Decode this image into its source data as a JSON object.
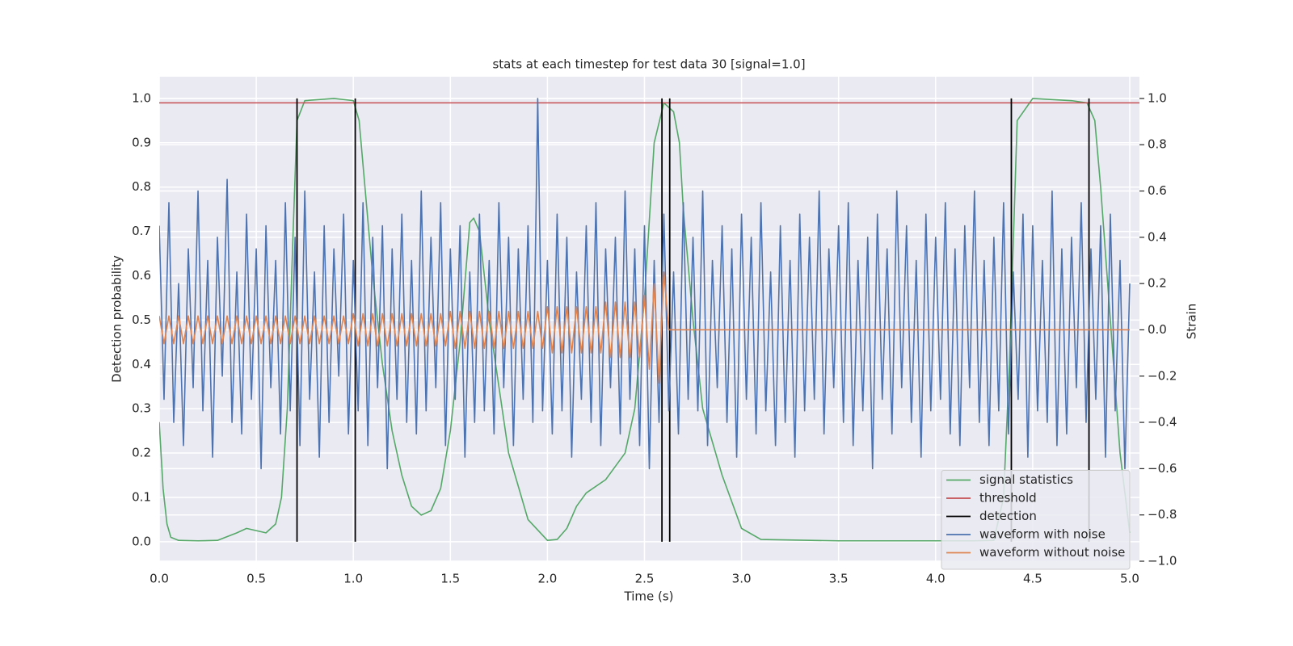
{
  "chart_data": {
    "type": "line",
    "title": "stats at each timestep for test data 30 [signal=1.0]",
    "xlabel": "Time (s)",
    "ylabel": "Detection probability",
    "y2label": "Strain",
    "xlim": [
      0,
      5.05
    ],
    "ylim": [
      -0.044,
      1.049
    ],
    "y2lim": [
      -1.0,
      1.094
    ],
    "xticks": [
      {
        "value": 0,
        "label": "0.0"
      },
      0.5,
      {
        "value": 1,
        "label": "1.0"
      },
      1.5,
      {
        "value": 2,
        "label": "2.0"
      },
      2.5,
      {
        "value": 3,
        "label": "3.0"
      },
      3.5,
      {
        "value": 4,
        "label": "4.0"
      },
      4.5,
      {
        "value": 5,
        "label": "5.0"
      }
    ],
    "yticks": [
      {
        "value": 0,
        "label": "0.0"
      },
      0.1,
      0.2,
      0.3,
      0.4,
      0.5,
      0.6,
      0.7,
      0.8,
      0.9,
      {
        "value": 1,
        "label": "1.0"
      }
    ],
    "y2ticks": [
      {
        "value": -1,
        "label": "−1.0"
      },
      {
        "value": -0.8,
        "label": "−0.8"
      },
      {
        "value": -0.6,
        "label": "−0.6"
      },
      {
        "value": -0.4,
        "label": "−0.4"
      },
      {
        "value": -0.2,
        "label": "−0.2"
      },
      {
        "value": 0,
        "label": "0.0"
      },
      0.2,
      0.4,
      0.6,
      0.8,
      {
        "value": 1,
        "label": "1.0"
      }
    ],
    "grid": true,
    "legend": "lower right",
    "series": [
      {
        "name": "signal statistics",
        "color": "#55a868",
        "x": [
          0,
          0.02,
          0.04,
          0.06,
          0.1,
          0.2,
          0.3,
          0.4,
          0.45,
          0.5,
          0.55,
          0.6,
          0.63,
          0.66,
          0.69,
          0.71,
          0.75,
          0.9,
          1.0,
          1.03,
          1.06,
          1.1,
          1.15,
          1.2,
          1.25,
          1.3,
          1.35,
          1.4,
          1.45,
          1.5,
          1.55,
          1.6,
          1.62,
          1.65,
          1.7,
          1.75,
          1.8,
          1.9,
          2.0,
          2.05,
          2.1,
          2.15,
          2.2,
          2.3,
          2.4,
          2.45,
          2.5,
          2.55,
          2.6,
          2.65,
          2.68,
          2.7,
          2.75,
          2.8,
          2.9,
          3.0,
          3.1,
          3.5,
          4.0,
          4.2,
          4.3,
          4.35,
          4.38,
          4.42,
          4.5,
          4.7,
          4.78,
          4.82,
          4.85,
          4.9,
          4.95,
          5.0
        ],
        "values": [
          0.27,
          0.12,
          0.04,
          0.01,
          0.003,
          0.002,
          0.003,
          0.02,
          0.03,
          0.025,
          0.02,
          0.04,
          0.1,
          0.3,
          0.7,
          0.95,
          0.995,
          1.0,
          0.995,
          0.95,
          0.8,
          0.6,
          0.4,
          0.25,
          0.15,
          0.08,
          0.06,
          0.07,
          0.12,
          0.25,
          0.45,
          0.72,
          0.73,
          0.7,
          0.5,
          0.35,
          0.2,
          0.05,
          0.003,
          0.005,
          0.03,
          0.08,
          0.11,
          0.14,
          0.2,
          0.3,
          0.55,
          0.9,
          0.99,
          0.97,
          0.9,
          0.75,
          0.5,
          0.3,
          0.15,
          0.03,
          0.005,
          0.002,
          0.002,
          0.002,
          0.003,
          0.1,
          0.4,
          0.95,
          1.0,
          0.995,
          0.99,
          0.95,
          0.8,
          0.5,
          0.2,
          0.02
        ]
      },
      {
        "name": "threshold",
        "color": "#c44e52",
        "value": 0.99
      },
      {
        "name": "detection",
        "color": "#000000",
        "x": [
          0.71,
          1.01,
          2.59,
          2.63,
          4.39,
          4.79
        ],
        "span": [
          0,
          1
        ]
      },
      {
        "name": "waveform with noise",
        "color": "#4c72b0",
        "axis": "y2",
        "x": [
          0,
          0.025,
          0.05,
          0.075,
          0.1,
          0.125,
          0.15,
          0.175,
          0.2,
          0.225,
          0.25,
          0.275,
          0.3,
          0.325,
          0.35,
          0.375,
          0.4,
          0.425,
          0.45,
          0.475,
          0.5,
          0.525,
          0.55,
          0.575,
          0.6,
          0.625,
          0.65,
          0.675,
          0.7,
          0.725,
          0.75,
          0.775,
          0.8,
          0.825,
          0.85,
          0.875,
          0.9,
          0.925,
          0.95,
          0.975,
          1.0,
          1.025,
          1.05,
          1.075,
          1.1,
          1.125,
          1.15,
          1.175,
          1.2,
          1.225,
          1.25,
          1.275,
          1.3,
          1.325,
          1.35,
          1.375,
          1.4,
          1.425,
          1.45,
          1.475,
          1.5,
          1.525,
          1.55,
          1.575,
          1.6,
          1.625,
          1.65,
          1.675,
          1.7,
          1.725,
          1.75,
          1.775,
          1.8,
          1.825,
          1.85,
          1.875,
          1.9,
          1.925,
          1.95,
          1.975,
          2.0,
          2.025,
          2.05,
          2.075,
          2.1,
          2.125,
          2.15,
          2.175,
          2.2,
          2.225,
          2.25,
          2.275,
          2.3,
          2.325,
          2.35,
          2.375,
          2.4,
          2.425,
          2.45,
          2.475,
          2.5,
          2.525,
          2.55,
          2.575,
          2.6,
          2.625,
          2.65,
          2.675,
          2.7,
          2.725,
          2.75,
          2.775,
          2.8,
          2.825,
          2.85,
          2.875,
          2.9,
          2.925,
          2.95,
          2.975,
          3.0,
          3.025,
          3.05,
          3.075,
          3.1,
          3.125,
          3.15,
          3.175,
          3.2,
          3.225,
          3.25,
          3.275,
          3.3,
          3.325,
          3.35,
          3.375,
          3.4,
          3.425,
          3.45,
          3.475,
          3.5,
          3.525,
          3.55,
          3.575,
          3.6,
          3.625,
          3.65,
          3.675,
          3.7,
          3.725,
          3.75,
          3.775,
          3.8,
          3.825,
          3.85,
          3.875,
          3.9,
          3.925,
          3.95,
          3.975,
          4.0,
          4.025,
          4.05,
          4.075,
          4.1,
          4.125,
          4.15,
          4.175,
          4.2,
          4.225,
          4.25,
          4.275,
          4.3,
          4.325,
          4.35,
          4.375,
          4.4,
          4.425,
          4.45,
          4.475,
          4.5,
          4.525,
          4.55,
          4.575,
          4.6,
          4.625,
          4.65,
          4.675,
          4.7,
          4.725,
          4.75,
          4.775,
          4.8,
          4.825,
          4.85,
          4.875,
          4.9,
          4.925,
          4.95,
          4.975,
          5.0
        ],
        "values": [
          0.45,
          -0.3,
          0.55,
          -0.4,
          0.2,
          -0.5,
          0.35,
          -0.25,
          0.6,
          -0.35,
          0.3,
          -0.55,
          0.4,
          -0.2,
          0.65,
          -0.4,
          0.25,
          -0.45,
          0.5,
          -0.3,
          0.35,
          -0.6,
          0.45,
          -0.25,
          0.3,
          -0.45,
          0.55,
          -0.35,
          0.4,
          -0.5,
          0.6,
          -0.3,
          0.25,
          -0.55,
          0.45,
          -0.4,
          0.35,
          -0.2,
          0.5,
          -0.45,
          0.3,
          -0.35,
          0.55,
          -0.5,
          0.4,
          -0.25,
          0.45,
          -0.6,
          0.35,
          -0.3,
          0.5,
          -0.4,
          0.3,
          -0.45,
          0.6,
          -0.35,
          0.4,
          -0.25,
          0.55,
          -0.5,
          0.35,
          -0.3,
          0.45,
          -0.55,
          0.25,
          -0.4,
          0.5,
          -0.35,
          0.3,
          -0.45,
          0.55,
          -0.25,
          0.4,
          -0.5,
          0.35,
          -0.3,
          0.45,
          -0.4,
          1.0,
          -0.35,
          0.3,
          -0.45,
          0.5,
          -0.35,
          0.4,
          -0.55,
          0.25,
          -0.3,
          0.45,
          -0.4,
          0.55,
          -0.5,
          0.35,
          -0.25,
          0.4,
          -0.45,
          0.6,
          -0.3,
          0.35,
          -0.5,
          0.45,
          -0.6,
          0.3,
          -0.4,
          0.5,
          -0.35,
          0.25,
          -0.45,
          0.55,
          -0.3,
          0.4,
          -0.35,
          0.6,
          -0.5,
          0.3,
          -0.25,
          0.45,
          -0.4,
          0.35,
          -0.55,
          0.5,
          -0.3,
          0.4,
          -0.45,
          0.55,
          -0.35,
          0.25,
          -0.5,
          0.45,
          -0.4,
          0.3,
          -0.55,
          0.5,
          -0.35,
          0.4,
          -0.3,
          0.6,
          -0.45,
          0.35,
          -0.25,
          0.45,
          -0.4,
          0.55,
          -0.5,
          0.3,
          -0.35,
          0.4,
          -0.6,
          0.5,
          -0.3,
          0.35,
          -0.45,
          0.6,
          -0.25,
          0.45,
          -0.4,
          0.3,
          -0.55,
          0.5,
          -0.35,
          0.4,
          -0.3,
          0.55,
          -0.45,
          0.35,
          -0.5,
          0.45,
          -0.25,
          0.6,
          -0.4,
          0.3,
          -0.5,
          0.4,
          -0.35,
          0.55,
          -0.45,
          0.25,
          -0.3,
          0.5,
          -0.55,
          0.45,
          -0.35,
          0.3,
          -0.4,
          0.6,
          -0.5,
          0.35,
          -0.45,
          0.4,
          -0.25,
          0.55,
          -0.4,
          0.35,
          -0.3,
          0.45,
          -0.55,
          0.5,
          -0.35,
          0.3,
          -0.6,
          0.2
        ]
      },
      {
        "name": "waveform without noise",
        "color": "#dd8452",
        "axis": "y2",
        "x": [
          0,
          0.025,
          0.05,
          0.075,
          0.1,
          0.125,
          0.15,
          0.175,
          0.2,
          0.225,
          0.25,
          0.275,
          0.3,
          0.325,
          0.35,
          0.375,
          0.4,
          0.425,
          0.45,
          0.475,
          0.5,
          0.525,
          0.55,
          0.575,
          0.6,
          0.625,
          0.65,
          0.675,
          0.7,
          0.725,
          0.75,
          0.775,
          0.8,
          0.825,
          0.85,
          0.875,
          0.9,
          0.925,
          0.95,
          0.975,
          1.0,
          1.025,
          1.05,
          1.075,
          1.1,
          1.125,
          1.15,
          1.175,
          1.2,
          1.225,
          1.25,
          1.275,
          1.3,
          1.325,
          1.35,
          1.375,
          1.4,
          1.425,
          1.45,
          1.475,
          1.5,
          1.525,
          1.55,
          1.575,
          1.6,
          1.625,
          1.65,
          1.675,
          1.7,
          1.725,
          1.75,
          1.775,
          1.8,
          1.825,
          1.85,
          1.875,
          1.9,
          1.925,
          1.95,
          1.975,
          2.0,
          2.025,
          2.05,
          2.075,
          2.1,
          2.125,
          2.15,
          2.175,
          2.2,
          2.225,
          2.25,
          2.275,
          2.3,
          2.325,
          2.35,
          2.375,
          2.4,
          2.425,
          2.45,
          2.475,
          2.5,
          2.525,
          2.55,
          2.575,
          2.6,
          2.625,
          5.0
        ],
        "values": [
          0.06,
          -0.06,
          0.06,
          -0.06,
          0.06,
          -0.06,
          0.06,
          -0.06,
          0.06,
          -0.06,
          0.06,
          -0.06,
          0.06,
          -0.06,
          0.06,
          -0.06,
          0.06,
          -0.06,
          0.06,
          -0.06,
          0.06,
          -0.06,
          0.06,
          -0.06,
          0.06,
          -0.06,
          0.06,
          -0.06,
          0.06,
          -0.06,
          0.06,
          -0.06,
          0.06,
          -0.06,
          0.06,
          -0.06,
          0.06,
          -0.06,
          0.06,
          -0.06,
          0.07,
          -0.07,
          0.07,
          -0.07,
          0.07,
          -0.07,
          0.07,
          -0.07,
          0.07,
          -0.07,
          0.07,
          -0.07,
          0.07,
          -0.07,
          0.07,
          -0.07,
          0.07,
          -0.07,
          0.07,
          -0.07,
          0.08,
          -0.08,
          0.08,
          -0.08,
          0.08,
          -0.08,
          0.08,
          -0.08,
          0.08,
          -0.08,
          0.08,
          -0.08,
          0.08,
          -0.08,
          0.08,
          -0.08,
          0.08,
          -0.08,
          0.08,
          -0.08,
          0.1,
          -0.1,
          0.1,
          -0.1,
          0.1,
          -0.1,
          0.1,
          -0.1,
          0.1,
          -0.1,
          0.1,
          -0.1,
          0.12,
          -0.12,
          0.12,
          -0.12,
          0.12,
          -0.12,
          0.12,
          -0.12,
          0.15,
          -0.17,
          0.2,
          -0.23,
          0.25,
          0.0,
          0.0
        ]
      }
    ]
  }
}
